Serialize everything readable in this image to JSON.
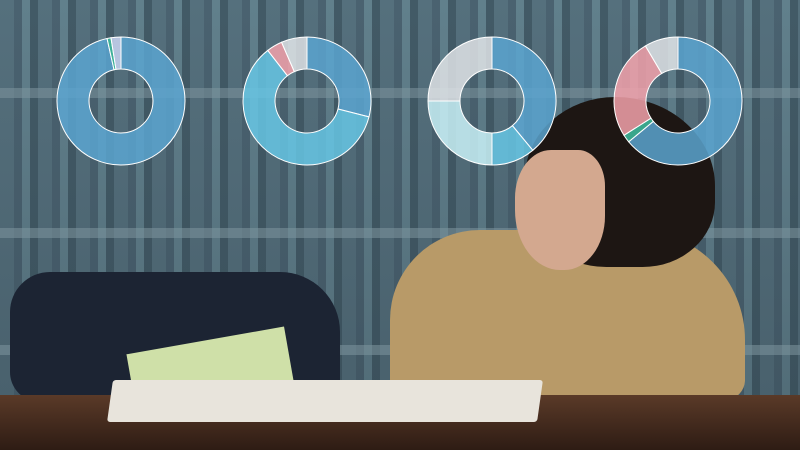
{
  "colors": {
    "blue": "#5aa4d0",
    "cyan": "#66c6e4",
    "pale_cyan": "#c9f1f7",
    "gray": "#dfe3e6",
    "pink": "#f3a2ab",
    "teal": "#3fbfa2",
    "lavender": "#c9d5f2",
    "stroke": "#ffffff"
  },
  "chart_data": [
    {
      "type": "pie",
      "donut": true,
      "title": "",
      "segments": [
        {
          "value": 96.5,
          "color": "#5aa4d0"
        },
        {
          "value": 1,
          "color": "#3fbfa2"
        },
        {
          "value": 2.5,
          "color": "#c9d5f2"
        }
      ]
    },
    {
      "type": "pie",
      "donut": true,
      "title": "",
      "segments": [
        {
          "value": 29,
          "color": "#5aa4d0"
        },
        {
          "value": 60.5,
          "color": "#66c6e4"
        },
        {
          "value": 4,
          "color": "#f3a2ab"
        },
        {
          "value": 6.5,
          "color": "#dfe3e6"
        }
      ]
    },
    {
      "type": "pie",
      "donut": true,
      "title": "",
      "segments": [
        {
          "value": 39,
          "color": "#5aa4d0"
        },
        {
          "value": 11,
          "color": "#66c6e4"
        },
        {
          "value": 25,
          "color": "#c9f1f7"
        },
        {
          "value": 25,
          "color": "#dfe3e6"
        }
      ]
    },
    {
      "type": "pie",
      "donut": true,
      "title": "",
      "segments": [
        {
          "value": 64,
          "color": "#5aa4d0"
        },
        {
          "value": 2,
          "color": "#3fbfa2"
        },
        {
          "value": 25.5,
          "color": "#f3a2ab"
        },
        {
          "value": 8.5,
          "color": "#dfe3e6"
        }
      ]
    }
  ]
}
